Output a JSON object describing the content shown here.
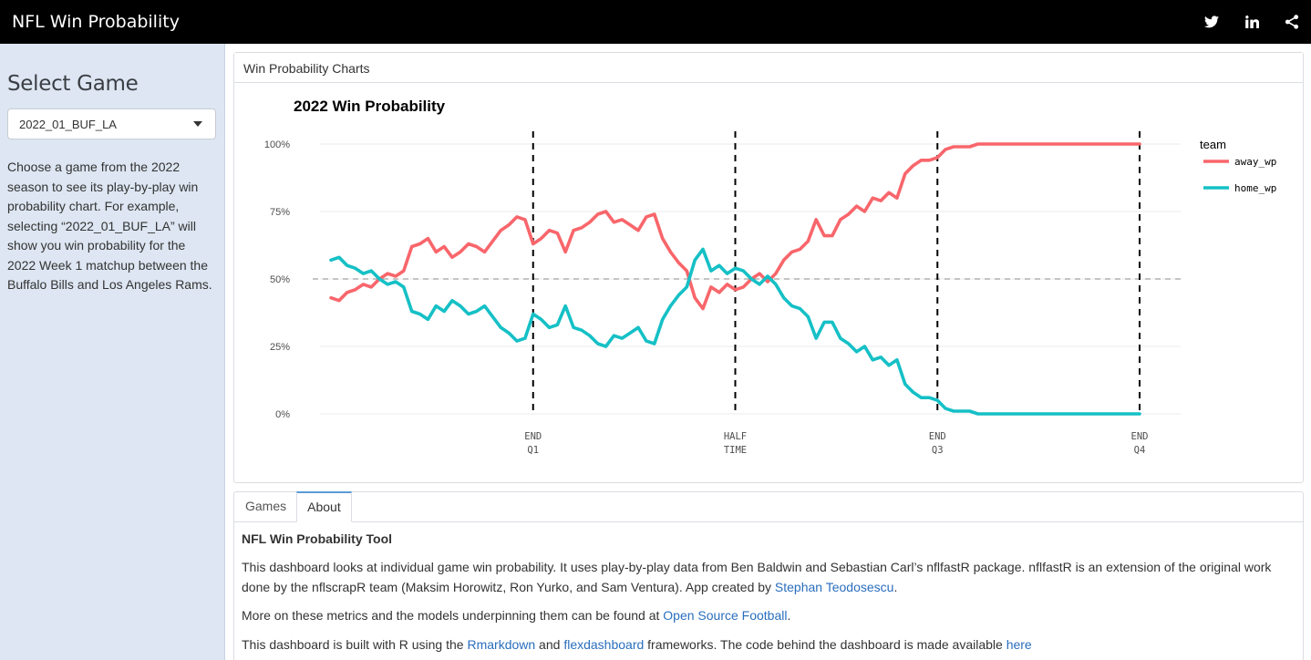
{
  "navbar": {
    "title": "NFL Win Probability",
    "icons": [
      "twitter-icon",
      "linkedin-icon",
      "share-icon"
    ]
  },
  "sidebar": {
    "heading": "Select Game",
    "select_value": "2022_01_BUF_LA",
    "description": "Choose a game from the 2022 season to see its play-by-play win probability chart. For example, selecting “2022_01_BUF_LA” will show you win probability for the 2022 Week 1 matchup between the Buffalo Bills and Los Angeles Rams."
  },
  "chart_panel": {
    "header": "Win Probability Charts"
  },
  "tabs": [
    {
      "label": "Games",
      "active": false
    },
    {
      "label": "About",
      "active": true
    }
  ],
  "about": {
    "heading": "NFL Win Probability Tool",
    "p1_text": "This dashboard looks at individual game win probability. It uses play-by-play data from Ben Baldwin and Sebastian Carl’s nflfastR package. nflfastR is an extension of the original work done by the nflscrapR team (Maksim Horowitz, Ron Yurko, and Sam Ventura). App created by ",
    "p1_link": "Stephan Teodosescu",
    "p1_end": ".",
    "p2_text": "More on these metrics and the models underpinning them can be found at ",
    "p2_link": "Open Source Football",
    "p2_end": ".",
    "p3_text": "This dashboard is built with R using the ",
    "p3_link1": "Rmarkdown",
    "p3_mid": " and ",
    "p3_link2": "flexdashboard",
    "p3_mid2": " frameworks. The code behind the dashboard is made available ",
    "p3_link3": "here"
  },
  "chart_data": {
    "type": "line",
    "title": "2022 Win Probability",
    "legend_title": "team",
    "legend_position": "right",
    "ylim": [
      0,
      100
    ],
    "xlim": [
      0,
      100
    ],
    "y_ticks": [
      0,
      25,
      50,
      75,
      100
    ],
    "y_tick_labels": [
      "0%",
      "25%",
      "50%",
      "75%",
      "100%"
    ],
    "reference_line_y": 50,
    "quarter_markers": [
      {
        "x": 25,
        "label1": "END",
        "label2": "Q1"
      },
      {
        "x": 50,
        "label1": "HALF",
        "label2": "TIME"
      },
      {
        "x": 75,
        "label1": "END",
        "label2": "Q3"
      },
      {
        "x": 100,
        "label1": "END",
        "label2": "Q4"
      }
    ],
    "colors": {
      "away_wp": "#f8666b",
      "home_wp": "#15c0c6"
    },
    "series": [
      {
        "name": "away_wp",
        "x": [
          0,
          1,
          2,
          3,
          4,
          5,
          6,
          7,
          8,
          9,
          10,
          11,
          12,
          13,
          14,
          15,
          16,
          17,
          18,
          19,
          20,
          21,
          22,
          23,
          24,
          25,
          26,
          27,
          28,
          29,
          30,
          31,
          32,
          33,
          34,
          35,
          36,
          37,
          38,
          39,
          40,
          41,
          42,
          43,
          44,
          45,
          46,
          47,
          48,
          49,
          50,
          51,
          52,
          53,
          54,
          55,
          56,
          57,
          58,
          59,
          60,
          61,
          62,
          63,
          64,
          65,
          66,
          67,
          68,
          69,
          70,
          71,
          72,
          73,
          74,
          75,
          76,
          77,
          78,
          79,
          80,
          82,
          84,
          86,
          88,
          90,
          92,
          94,
          96,
          98,
          100
        ],
        "y": [
          43,
          42,
          45,
          46,
          48,
          47,
          50,
          52,
          51,
          53,
          62,
          63,
          65,
          60,
          62,
          58,
          60,
          63,
          62,
          60,
          64,
          68,
          70,
          73,
          72,
          63,
          65,
          68,
          67,
          60,
          68,
          69,
          71,
          74,
          75,
          71,
          72,
          70,
          68,
          73,
          74,
          65,
          60,
          56,
          53,
          43,
          39,
          47,
          45,
          48,
          46,
          47,
          50,
          52,
          49,
          52,
          57,
          60,
          61,
          64,
          72,
          66,
          66,
          72,
          74,
          77,
          75,
          80,
          79,
          82,
          80,
          89,
          92,
          94,
          94,
          95,
          98,
          99,
          99,
          99,
          100,
          100,
          100,
          100,
          100,
          100,
          100,
          100,
          100,
          100,
          100
        ]
      },
      {
        "name": "home_wp",
        "x": [
          0,
          1,
          2,
          3,
          4,
          5,
          6,
          7,
          8,
          9,
          10,
          11,
          12,
          13,
          14,
          15,
          16,
          17,
          18,
          19,
          20,
          21,
          22,
          23,
          24,
          25,
          26,
          27,
          28,
          29,
          30,
          31,
          32,
          33,
          34,
          35,
          36,
          37,
          38,
          39,
          40,
          41,
          42,
          43,
          44,
          45,
          46,
          47,
          48,
          49,
          50,
          51,
          52,
          53,
          54,
          55,
          56,
          57,
          58,
          59,
          60,
          61,
          62,
          63,
          64,
          65,
          66,
          67,
          68,
          69,
          70,
          71,
          72,
          73,
          74,
          75,
          76,
          77,
          78,
          79,
          80,
          82,
          84,
          86,
          88,
          90,
          92,
          94,
          96,
          98,
          100
        ],
        "y": [
          57,
          58,
          55,
          54,
          52,
          53,
          50,
          48,
          49,
          47,
          38,
          37,
          35,
          40,
          38,
          42,
          40,
          37,
          38,
          40,
          36,
          32,
          30,
          27,
          28,
          37,
          35,
          32,
          33,
          40,
          32,
          31,
          29,
          26,
          25,
          29,
          28,
          30,
          32,
          27,
          26,
          35,
          40,
          44,
          47,
          57,
          61,
          53,
          55,
          52,
          54,
          53,
          50,
          48,
          51,
          48,
          43,
          40,
          39,
          36,
          28,
          34,
          34,
          28,
          26,
          23,
          25,
          20,
          21,
          18,
          20,
          11,
          8,
          6,
          6,
          5,
          2,
          1,
          1,
          1,
          0,
          0,
          0,
          0,
          0,
          0,
          0,
          0,
          0,
          0,
          0
        ]
      }
    ]
  }
}
